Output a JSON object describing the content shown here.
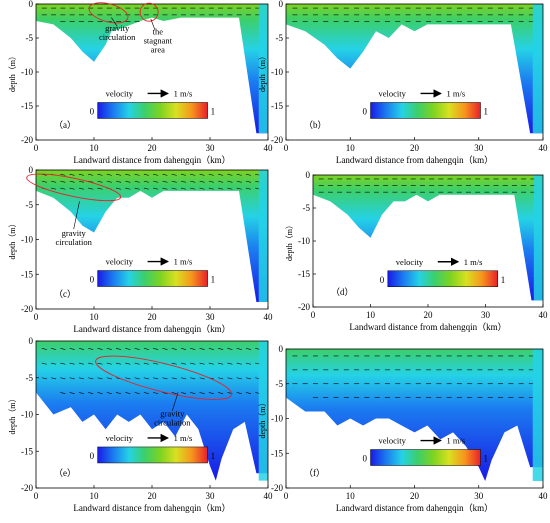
{
  "figure": {
    "colors": {
      "colormap": [
        "#1a1ae6",
        "#1b7cf0",
        "#25d2e6",
        "#3ccf6a",
        "#7ed321",
        "#d9e021",
        "#f7941d",
        "#e8202a"
      ],
      "arrow": "#000000",
      "annotation": "#e8202a"
    }
  },
  "chart_data": [
    {
      "type": "heatmap",
      "panel_label": "（a）",
      "xlabel": "Landward distance from dahengqin（km）",
      "ylabel": "depth（m）",
      "x_ticks": [
        0,
        10,
        20,
        30,
        40
      ],
      "y_ticks": [
        0,
        -5,
        -10,
        -15,
        -20
      ],
      "xlim": [
        0,
        40
      ],
      "ylim": [
        -20,
        0
      ],
      "legend": {
        "title": "velocity",
        "ref_vector": "1 m/s",
        "min": "0",
        "max": "1"
      },
      "annotations": [
        "gravity circulation",
        "the stagnant area"
      ],
      "bed_profile": {
        "x": [
          0,
          3,
          6,
          8,
          10,
          12,
          13,
          15,
          18,
          20,
          22,
          25,
          28,
          30,
          32,
          35,
          38,
          40
        ],
        "depth": [
          -2.5,
          -3,
          -5,
          -7,
          -8.5,
          -6,
          -4,
          -3.5,
          -2.5,
          -2,
          -2.5,
          -2,
          -2,
          -2,
          -2,
          -2,
          -19,
          -19
        ]
      }
    },
    {
      "type": "heatmap",
      "panel_label": "（b）",
      "xlabel": "Landward distance from dahengqin（km）",
      "ylabel": "depth（m）",
      "x_ticks": [
        0,
        10,
        20,
        30,
        40
      ],
      "y_ticks": [
        0,
        -5,
        -10,
        -15,
        -20
      ],
      "xlim": [
        0,
        40
      ],
      "ylim": [
        -20,
        0
      ],
      "legend": {
        "title": "velocity",
        "ref_vector": "1 m/s",
        "min": "0",
        "max": "1"
      },
      "annotations": [],
      "bed_profile": {
        "x": [
          0,
          3,
          6,
          8,
          10,
          12,
          14,
          16,
          18,
          20,
          22,
          25,
          28,
          30,
          32,
          35,
          38,
          40
        ],
        "depth": [
          -3,
          -4,
          -6,
          -8,
          -9.5,
          -7,
          -4,
          -5,
          -3,
          -4,
          -3,
          -3,
          -3,
          -3,
          -3,
          -3,
          -19,
          -19
        ]
      }
    },
    {
      "type": "heatmap",
      "panel_label": "（c）",
      "xlabel": "Landward distance from dahengqin（km）",
      "ylabel": "depth（m）",
      "x_ticks": [
        0,
        10,
        20,
        30,
        40
      ],
      "y_ticks": [
        0,
        -5,
        -10,
        -15,
        -20
      ],
      "xlim": [
        0,
        40
      ],
      "ylim": [
        -20,
        0
      ],
      "legend": {
        "title": "velocity",
        "ref_vector": "1 m/s",
        "min": "0",
        "max": "1"
      },
      "annotations": [
        "gravity circulation"
      ],
      "bed_profile": {
        "x": [
          0,
          3,
          6,
          8,
          10,
          12,
          14,
          16,
          18,
          20,
          22,
          25,
          28,
          30,
          32,
          35,
          38,
          40
        ],
        "depth": [
          -3,
          -4,
          -6,
          -8,
          -9,
          -6,
          -4,
          -4,
          -3,
          -4,
          -3,
          -3,
          -3,
          -3,
          -3,
          -3,
          -19,
          -19
        ]
      }
    },
    {
      "type": "heatmap",
      "panel_label": "（d）",
      "xlabel": "Landward distance from dahengqin（km）",
      "ylabel": "depth（m）",
      "x_ticks": [
        0,
        10,
        20,
        30,
        40
      ],
      "y_ticks": [
        0,
        -5,
        -10,
        -15,
        -20
      ],
      "xlim": [
        0,
        40
      ],
      "ylim": [
        -20,
        0
      ],
      "legend": {
        "title": "velocity",
        "ref_vector": "1 m/s",
        "min": "0",
        "max": "1"
      },
      "annotations": [],
      "bed_profile": {
        "x": [
          0,
          3,
          6,
          8,
          10,
          12,
          14,
          16,
          18,
          20,
          22,
          25,
          28,
          30,
          32,
          35,
          38,
          40
        ],
        "depth": [
          -3,
          -4,
          -6,
          -8,
          -9.5,
          -6,
          -4,
          -4,
          -3,
          -4,
          -3,
          -3,
          -3,
          -3,
          -3,
          -3,
          -19,
          -19
        ]
      }
    },
    {
      "type": "heatmap",
      "panel_label": "（e）",
      "xlabel": "Landward distance from dahengqin（km）",
      "ylabel": "depth（m）",
      "x_ticks": [
        0,
        10,
        20,
        30,
        40
      ],
      "y_ticks": [
        0,
        -5,
        -10,
        -15,
        -20
      ],
      "xlim": [
        0,
        40
      ],
      "ylim": [
        -20,
        0
      ],
      "legend": {
        "title": "velocity",
        "ref_vector": "1 m/s",
        "min": "0",
        "max": "1"
      },
      "annotations": [
        "gravity circulation"
      ],
      "bed_profile": {
        "x": [
          0,
          3,
          6,
          8,
          10,
          12,
          14,
          16,
          18,
          20,
          22,
          24,
          26,
          28,
          30,
          31,
          32,
          34,
          36,
          38,
          40
        ],
        "depth": [
          -7,
          -10,
          -9,
          -11,
          -10,
          -12,
          -10,
          -11,
          -10,
          -12,
          -11,
          -13,
          -10,
          -12,
          -17,
          -19,
          -16,
          -12,
          -11,
          -18,
          -18
        ]
      }
    },
    {
      "type": "heatmap",
      "panel_label": "（f）",
      "xlabel": "Landward distance from dahengqin（km）",
      "ylabel": "depth（m）",
      "x_ticks": [
        0,
        10,
        20,
        30,
        40
      ],
      "y_ticks": [
        0,
        -5,
        -10,
        -15,
        -20
      ],
      "xlim": [
        0,
        40
      ],
      "ylim": [
        -20,
        0
      ],
      "legend": {
        "title": "velocity",
        "ref_vector": "1 m/s",
        "min": "0",
        "max": "1"
      },
      "annotations": [],
      "bed_profile": {
        "x": [
          0,
          3,
          6,
          8,
          10,
          12,
          14,
          16,
          18,
          20,
          22,
          24,
          26,
          28,
          30,
          31,
          32,
          34,
          36,
          38,
          40
        ],
        "depth": [
          -7,
          -9,
          -9,
          -11,
          -10,
          -11,
          -10,
          -10,
          -11,
          -12,
          -11,
          -13,
          -12,
          -14,
          -17,
          -19,
          -16,
          -12,
          -11,
          -17,
          -17
        ]
      }
    }
  ]
}
